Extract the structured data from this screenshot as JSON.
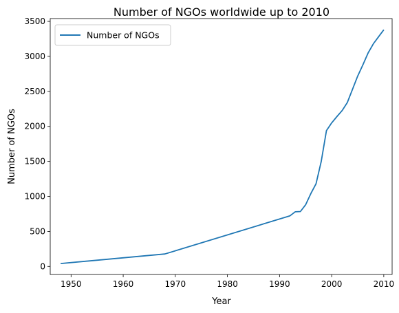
{
  "chart_data": {
    "type": "line",
    "title": "Number of NGOs worldwide up to 2010",
    "xlabel": "Year",
    "ylabel": "Number of NGOs",
    "xlim": [
      1946,
      2011.6
    ],
    "ylim": [
      -115,
      3540
    ],
    "xticks": [
      1950,
      1960,
      1970,
      1980,
      1990,
      2000,
      2010
    ],
    "yticks": [
      0,
      500,
      1000,
      1500,
      2000,
      2500,
      3000,
      3500
    ],
    "grid": false,
    "legend": "top-left",
    "series": [
      {
        "name": "Number of NGOs",
        "color": "#1f77b4",
        "x": [
          1948,
          1968,
          1992,
          1993,
          1994,
          1995,
          1996,
          1997,
          1998,
          1999,
          2000,
          2001,
          2002,
          2003,
          2004,
          2005,
          2006,
          2007,
          2008,
          2009,
          2010
        ],
        "y": [
          41,
          178,
          723,
          780,
          784,
          880,
          1040,
          1180,
          1500,
          1940,
          2050,
          2140,
          2225,
          2340,
          2530,
          2720,
          2880,
          3050,
          3180,
          3280,
          3380
        ]
      }
    ]
  }
}
